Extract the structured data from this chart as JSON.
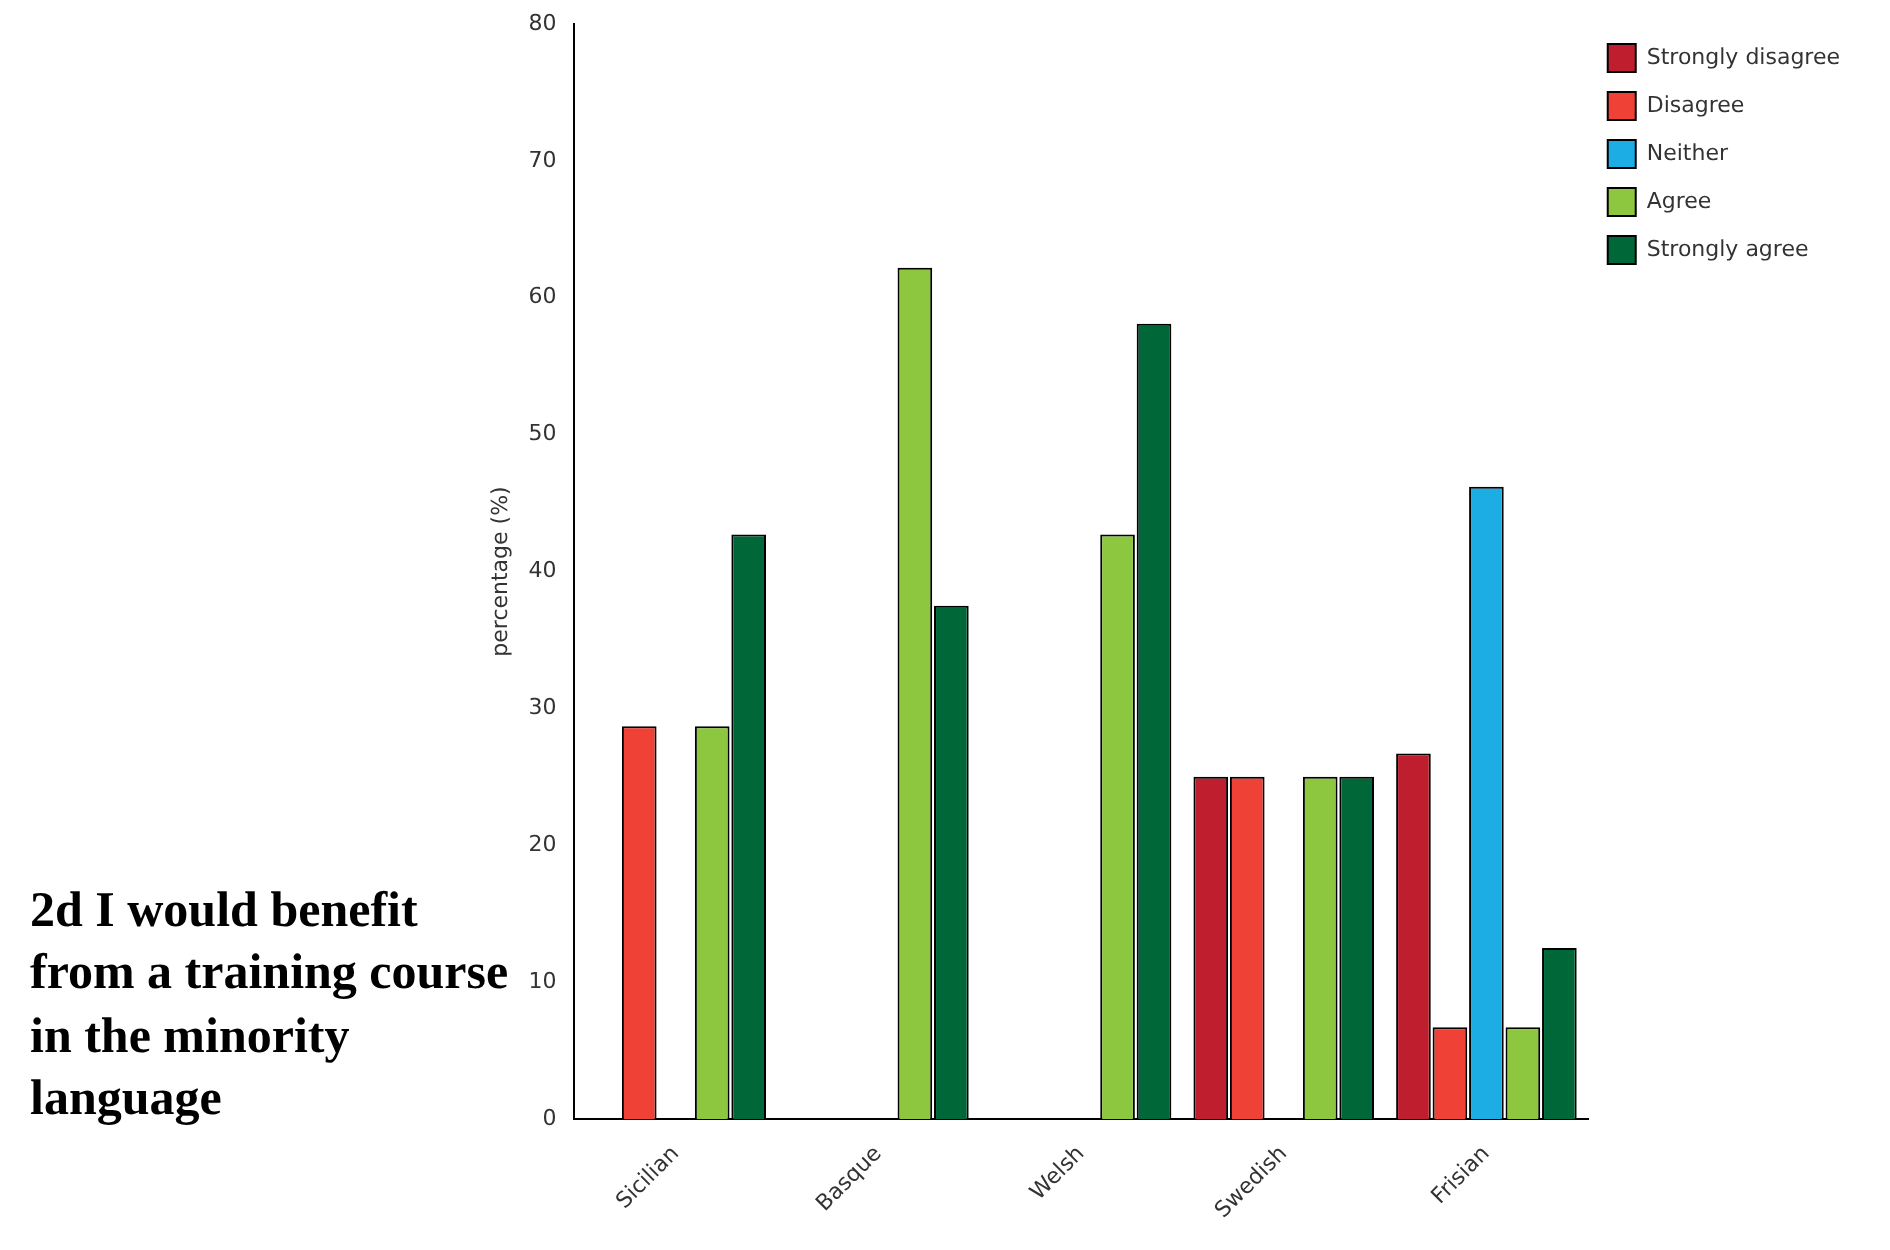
{
  "chart_data": {
    "type": "bar",
    "title": "2d I would benefit from a training course in the minority language",
    "ylabel": "percentage (%)",
    "categories": [
      "Sicilian",
      "Basque",
      "Welsh",
      "Swedish",
      "Frisian"
    ],
    "series": [
      {
        "name": "Strongly disagree",
        "color": "#be1e2d",
        "values": [
          0,
          0,
          0,
          25,
          26.7
        ]
      },
      {
        "name": "Disagree",
        "color": "#ef4136",
        "values": [
          28.7,
          0,
          0,
          25,
          6.7
        ]
      },
      {
        "name": "Neither",
        "color": "#1cade4",
        "values": [
          0,
          0,
          0,
          0,
          46.2
        ]
      },
      {
        "name": "Agree",
        "color": "#8dc63f",
        "values": [
          28.7,
          62.2,
          42.7,
          25,
          6.7
        ]
      },
      {
        "name": "Strongly agree",
        "color": "#006838",
        "values": [
          42.7,
          37.5,
          58.1,
          25,
          12.5
        ]
      }
    ],
    "ylim": [
      0,
      80
    ],
    "yticks": [
      0,
      10,
      20,
      30,
      40,
      50,
      60,
      70,
      80
    ],
    "grid": false,
    "legend": "top right"
  }
}
